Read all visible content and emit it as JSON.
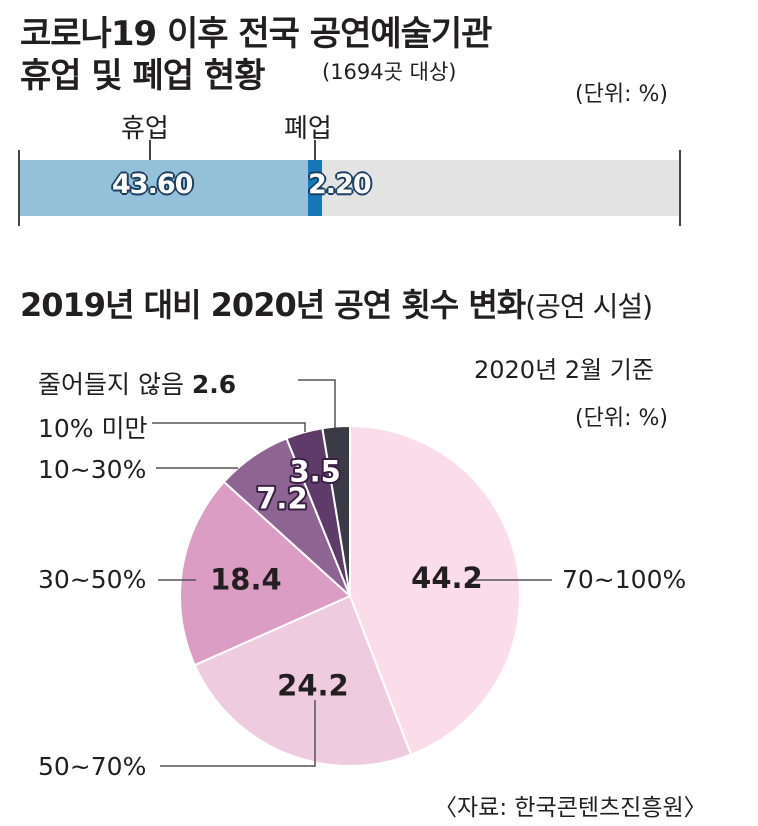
{
  "header": {
    "title_line1": "코로나19 이후 전국 공연예술기관",
    "title_line2": "휴업 및 폐업 현황",
    "sample_note": "(1694곳 대상)",
    "unit": "(단위: %)"
  },
  "pie_section": {
    "title": "2019년 대비 2020년 공연 횟수 변화",
    "title_suffix": "(공연 시설)",
    "basis_date": "2020년 2월 기준",
    "unit": "(단위: %)"
  },
  "source": "〈자료: 한국콘텐츠진흥원〉",
  "colors": {
    "closure_temp": "#94c0d9",
    "closure_perm": "#1477b8",
    "bar_bg": "#e3e3e3",
    "slice_70_100": "#fbdde9",
    "slice_50_70": "#efcbe0",
    "slice_30_50": "#dc9dc4",
    "slice_10_30": "#8e6592",
    "slice_lt10": "#5e3b69",
    "slice_none": "#3a3b45"
  },
  "chart_data": [
    {
      "type": "bar",
      "orientation": "horizontal-stacked",
      "title": "코로나19 이후 전국 공연예술기관 휴업 및 폐업 현황",
      "unit": "%",
      "xlim": [
        0,
        100
      ],
      "categories": [
        "휴업",
        "폐업"
      ],
      "values": [
        43.6,
        2.2
      ],
      "value_labels": [
        "43.60",
        "2.20"
      ]
    },
    {
      "type": "pie",
      "title": "2019년 대비 2020년 공연 횟수 변화",
      "unit": "%",
      "slices": [
        {
          "label": "70~100%",
          "value": 44.2,
          "display": "44.2"
        },
        {
          "label": "50~70%",
          "value": 24.2,
          "display": "24.2"
        },
        {
          "label": "30~50%",
          "value": 18.4,
          "display": "18.4"
        },
        {
          "label": "10~30%",
          "value": 7.2,
          "display": "7.2"
        },
        {
          "label": "10% 미만",
          "value": 3.5,
          "display": "3.5"
        },
        {
          "label": "줄어들지 않음",
          "value": 2.6,
          "display": "2.6"
        }
      ]
    }
  ]
}
